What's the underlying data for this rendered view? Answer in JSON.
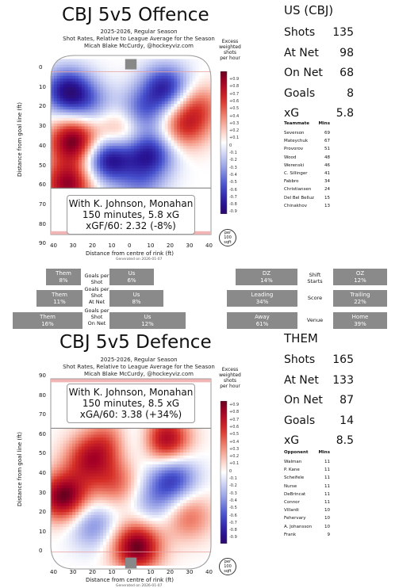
{
  "offence": {
    "title": "CBJ 5v5 Offence",
    "subtitle_lines": [
      "2025-2026, Regular Season",
      "Shot Rates, Relative to League Average for the Season",
      "Micah Blake McCurdy, @hockeyviz.com"
    ],
    "info_lines": [
      "With K. Johnson, Monahan",
      "150 minutes, 5.8 xG",
      "xGF/60: 2.32 (-8%)"
    ],
    "footer": "Generated on 2026-01-07",
    "ylabel": "Distance from goal line (ft)",
    "xlabel": "Distance from centre of rink (ft)",
    "yticks": [
      "0",
      "10",
      "20",
      "30",
      "40",
      "50",
      "60",
      "70",
      "80",
      "90"
    ],
    "xticks": [
      "40",
      "30",
      "20",
      "10",
      "0",
      "10",
      "20",
      "30",
      "40"
    ]
  },
  "defence": {
    "title": "CBJ 5v5 Defence",
    "subtitle_lines": [
      "2025-2026, Regular Season",
      "Shot Rates, Relative to League Average for the Season",
      "Micah Blake McCurdy, @hockeyviz.com"
    ],
    "info_lines": [
      "With K. Johnson, Monahan",
      "150 minutes, 8.5 xG",
      "xGA/60: 3.38 (+34%)"
    ],
    "footer": "Generated on 2026-01-07",
    "ylabel": "Distance from goal line (ft)",
    "xlabel": "Distance from centre of rink (ft)",
    "yticks": [
      "90",
      "80",
      "70",
      "60",
      "50",
      "40",
      "30",
      "20",
      "10",
      "0"
    ],
    "xticks": [
      "40",
      "30",
      "20",
      "10",
      "0",
      "10",
      "20",
      "30",
      "40"
    ]
  },
  "colorbar": {
    "title_lines": [
      "Excess",
      "weighted",
      "shots",
      "per hour"
    ],
    "ticks": [
      "+0.9",
      "+0.8",
      "+0.7",
      "+0.6",
      "+0.5",
      "+0.4",
      "+0.3",
      "+0.2",
      "+0.1",
      "0",
      "-0.1",
      "-0.2",
      "-0.3",
      "-0.4",
      "-0.5",
      "-0.6",
      "-0.7",
      "-0.8",
      "-0.9"
    ],
    "per100_lines": [
      "per",
      "100",
      "sqft"
    ],
    "colors": {
      "high": "#67001f",
      "mid": "#ffffff",
      "low": "#2c0a6b"
    }
  },
  "us": {
    "header": "US (CBJ)",
    "stats": [
      {
        "label": "Shots",
        "value": "135"
      },
      {
        "label": "At Net",
        "value": "98"
      },
      {
        "label": "On Net",
        "value": "68"
      },
      {
        "label": "Goals",
        "value": "8"
      },
      {
        "label": "xG",
        "value": "5.8"
      }
    ],
    "table_header": {
      "name": "Teammate",
      "mins": "Mins"
    },
    "table": [
      {
        "name": "Severson",
        "mins": "69"
      },
      {
        "name": "Mateychuk",
        "mins": "67"
      },
      {
        "name": "Provorov",
        "mins": "51"
      },
      {
        "name": "Wood",
        "mins": "48"
      },
      {
        "name": "Werenski",
        "mins": "46"
      },
      {
        "name": "C. Sillinger",
        "mins": "41"
      },
      {
        "name": "Fabbro",
        "mins": "34"
      },
      {
        "name": "Christiansen",
        "mins": "24"
      },
      {
        "name": "Del Bel Belluz",
        "mins": "15"
      },
      {
        "name": "Chinakhov",
        "mins": "13"
      }
    ]
  },
  "them": {
    "header": "THEM",
    "stats": [
      {
        "label": "Shots",
        "value": "165"
      },
      {
        "label": "At Net",
        "value": "133"
      },
      {
        "label": "On Net",
        "value": "87"
      },
      {
        "label": "Goals",
        "value": "14"
      },
      {
        "label": "xG",
        "value": "8.5"
      }
    ],
    "table_header": {
      "name": "Opponent",
      "mins": "Mins"
    },
    "table": [
      {
        "name": "Walman",
        "mins": "11"
      },
      {
        "name": "P. Kane",
        "mins": "11"
      },
      {
        "name": "Scheifele",
        "mins": "11"
      },
      {
        "name": "Nurse",
        "mins": "11"
      },
      {
        "name": "DeBrincat",
        "mins": "11"
      },
      {
        "name": "Connor",
        "mins": "11"
      },
      {
        "name": "Villardi",
        "mins": "10"
      },
      {
        "name": "Fehervary",
        "mins": "10"
      },
      {
        "name": "A. Johansson",
        "mins": "10"
      },
      {
        "name": "Frank",
        "mins": "9"
      }
    ]
  },
  "gauges": {
    "left": [
      {
        "label_lines": [
          "Goals per",
          "Shot"
        ],
        "them_lines": [
          "Them",
          "8%"
        ],
        "us_lines": [
          "Us",
          "6%"
        ]
      },
      {
        "label_lines": [
          "Goals per",
          "Shot",
          "At Net"
        ],
        "them_lines": [
          "Them",
          "11%"
        ],
        "us_lines": [
          "Us",
          "8%"
        ]
      },
      {
        "label_lines": [
          "Goals per",
          "Shot",
          "On Net"
        ],
        "them_lines": [
          "Them",
          "16%"
        ],
        "us_lines": [
          "Us",
          "12%"
        ]
      }
    ],
    "right": [
      {
        "label_lines": [
          "Shift",
          "Starts"
        ],
        "a_lines": [
          "DZ",
          "14%"
        ],
        "b_lines": [
          "OZ",
          "12%"
        ]
      },
      {
        "label_lines": [
          "Score"
        ],
        "a_lines": [
          "Leading",
          "34%"
        ],
        "b_lines": [
          "Trailing",
          "22%"
        ]
      },
      {
        "label_lines": [
          "Venue"
        ],
        "a_lines": [
          "Away",
          "61%"
        ],
        "b_lines": [
          "Home",
          "39%"
        ]
      }
    ]
  },
  "chart_data": [
    {
      "type": "heatmap",
      "title": "CBJ 5v5 Offence",
      "xlabel": "Distance from centre of rink (ft)",
      "ylabel": "Distance from goal line (ft)",
      "xlim": [
        -42,
        42
      ],
      "ylim": [
        -10,
        90
      ],
      "colorscale_range": [
        -0.9,
        0.9
      ],
      "hotspots": [
        {
          "x": -33,
          "y": 10,
          "value": -0.8
        },
        {
          "x": -30,
          "y": 38,
          "value": 0.9
        },
        {
          "x": -33,
          "y": 62,
          "value": 0.8
        },
        {
          "x": -12,
          "y": 48,
          "value": -0.8
        },
        {
          "x": 10,
          "y": 45,
          "value": -0.7
        },
        {
          "x": 18,
          "y": 8,
          "value": -0.7
        },
        {
          "x": 5,
          "y": 22,
          "value": -0.5
        },
        {
          "x": 28,
          "y": 30,
          "value": 0.5
        },
        {
          "x": -5,
          "y": 30,
          "value": 0.4
        },
        {
          "x": 35,
          "y": 18,
          "value": 0.4
        },
        {
          "x": -20,
          "y": 18,
          "value": -0.3
        },
        {
          "x": 5,
          "y": 62,
          "value": -0.3
        }
      ]
    },
    {
      "type": "heatmap",
      "title": "CBJ 5v5 Defence",
      "xlabel": "Distance from centre of rink (ft)",
      "ylabel": "Distance from goal line (ft)",
      "xlim": [
        -42,
        42
      ],
      "ylim": [
        -10,
        90
      ],
      "colorscale_range": [
        -0.9,
        0.9
      ],
      "hotspots": [
        {
          "x": 3,
          "y": 2,
          "value": 0.9
        },
        {
          "x": -35,
          "y": 28,
          "value": 0.9
        },
        {
          "x": -22,
          "y": 48,
          "value": 0.6
        },
        {
          "x": 18,
          "y": 58,
          "value": 0.8
        },
        {
          "x": 22,
          "y": 38,
          "value": -0.6
        },
        {
          "x": 2,
          "y": 58,
          "value": -0.3
        },
        {
          "x": 30,
          "y": 18,
          "value": 0.4
        },
        {
          "x": -8,
          "y": 35,
          "value": 0.4
        },
        {
          "x": -20,
          "y": 14,
          "value": -0.4
        },
        {
          "x": 12,
          "y": 25,
          "value": -0.3
        },
        {
          "x": -10,
          "y": 58,
          "value": 0.4
        }
      ]
    }
  ]
}
